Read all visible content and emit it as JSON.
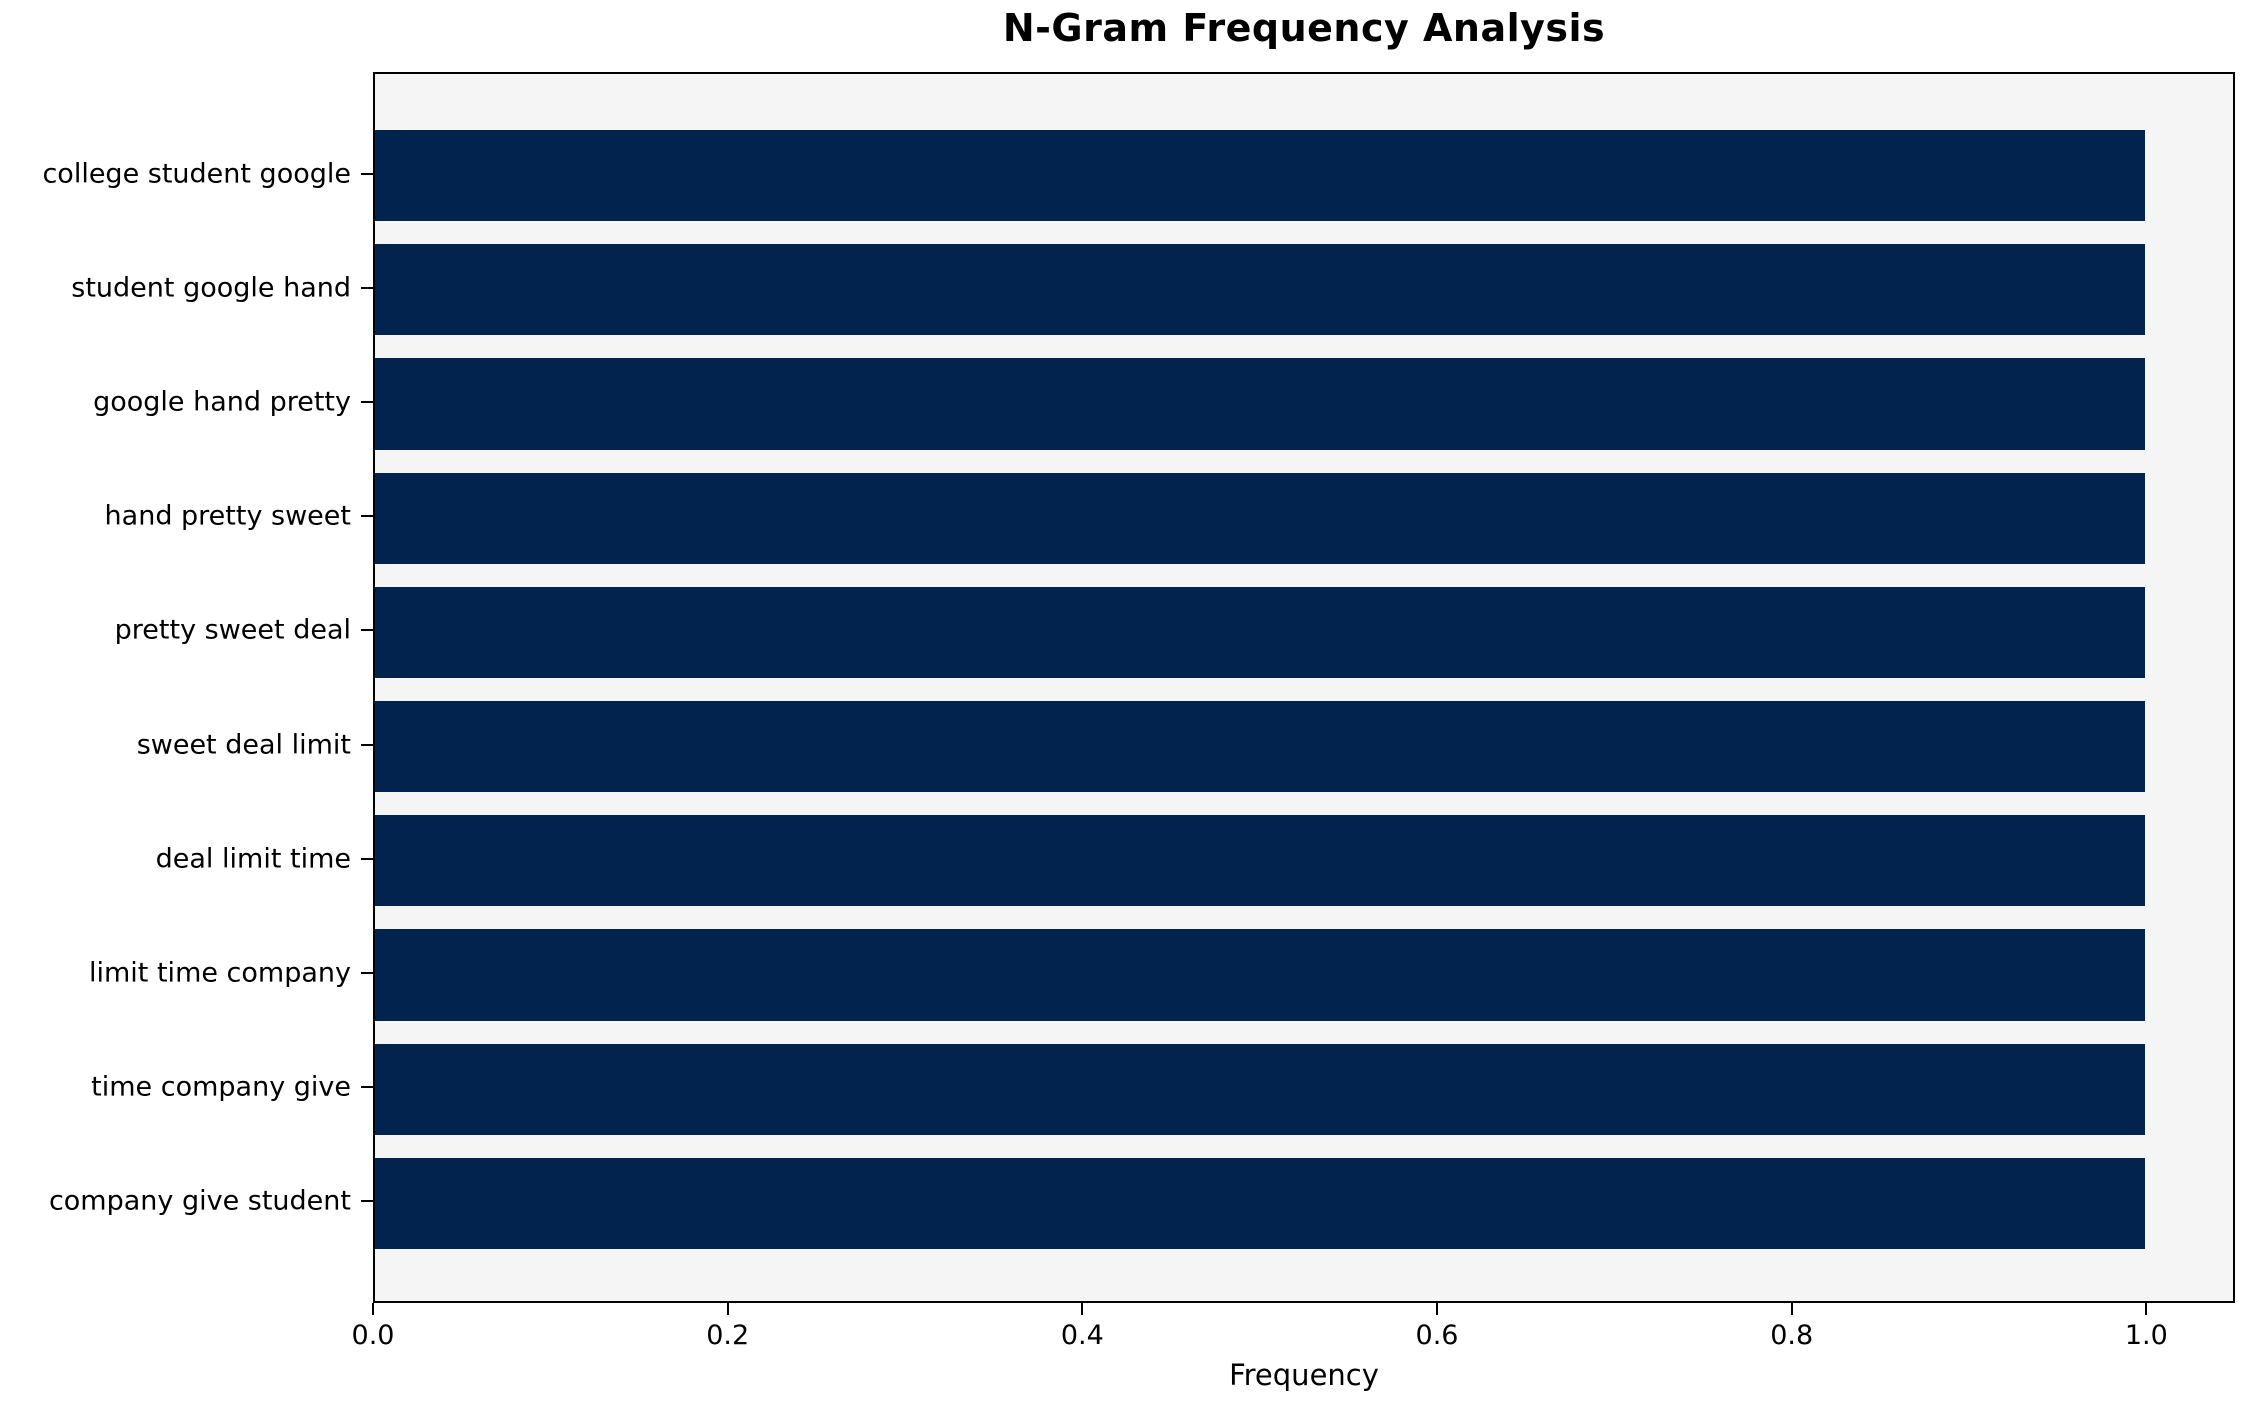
{
  "chart_data": {
    "type": "bar",
    "orientation": "horizontal",
    "title": "N-Gram Frequency Analysis",
    "xlabel": "Frequency",
    "ylabel": "",
    "categories": [
      "college student google",
      "student google hand",
      "google hand pretty",
      "hand pretty sweet",
      "pretty sweet deal",
      "sweet deal limit",
      "deal limit time",
      "limit time company",
      "time company give",
      "company give student"
    ],
    "values": [
      1.0,
      1.0,
      1.0,
      1.0,
      1.0,
      1.0,
      1.0,
      1.0,
      1.0,
      1.0
    ],
    "xlim": [
      0,
      1.05
    ],
    "x_tick_labels": [
      "0.0",
      "0.2",
      "0.4",
      "0.6",
      "0.8",
      "1.0"
    ],
    "x_tick_values": [
      0.0,
      0.2,
      0.4,
      0.6,
      0.8,
      1.0
    ],
    "bar_color": "#02234d",
    "plot_bg": "#f5f5f6",
    "figure_bg": "#ffffff",
    "grid": false,
    "legend_position": "none"
  }
}
